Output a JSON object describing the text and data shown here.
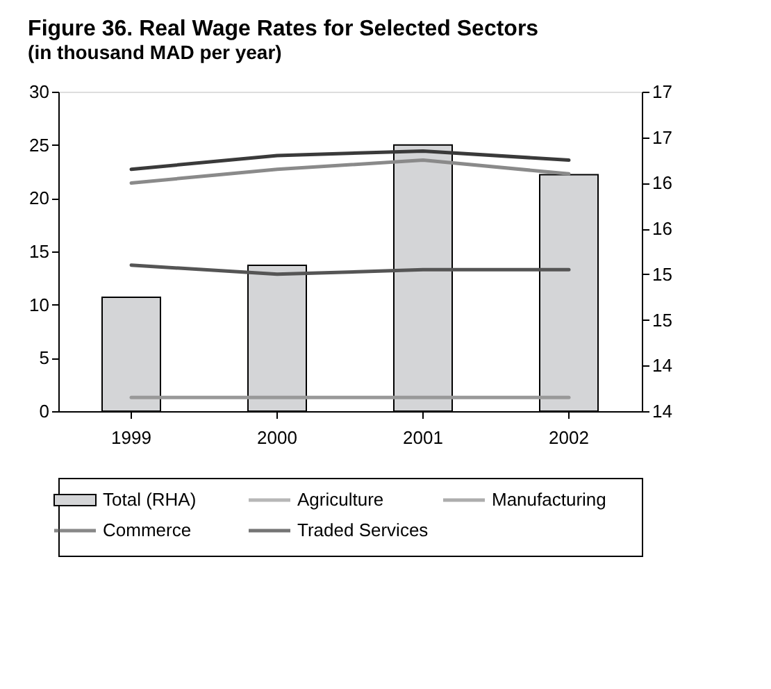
{
  "chart_data": {
    "type": "bar",
    "title": "Figure 36.  Real Wage Rates for Selected Sectors",
    "subtitle": "(in thousand MAD per year)",
    "categories": [
      "1999",
      "2000",
      "2001",
      "2002"
    ],
    "series": [
      {
        "name": "Total (RHA)",
        "color": "#d4d5d7",
        "values": [
          10.7,
          13.7,
          25,
          22.2
        ]
      },
      {
        "name": "Agriculture",
        "type": "line",
        "axis": "y2",
        "color": "#999999",
        "values": [
          13.65,
          13.65,
          13.65,
          13.65
        ]
      },
      {
        "name": "Manufacturing",
        "type": "line",
        "axis": "y2",
        "color": "#8a8a8a",
        "values": [
          16.0,
          16.15,
          16.25,
          16.1
        ]
      },
      {
        "name": "Commerce",
        "type": "line",
        "axis": "y2",
        "color": "#555555",
        "values": [
          15.1,
          15.0,
          15.05,
          15.05
        ]
      },
      {
        "name": "Traded Services",
        "type": "line",
        "axis": "y2",
        "color": "#3a3a3a",
        "values": [
          16.15,
          16.3,
          16.35,
          16.25
        ]
      }
    ],
    "ylim": [
      0,
      30
    ],
    "yticks": [
      0,
      5,
      10,
      15,
      20,
      25,
      30
    ],
    "y2lim": [
      13.5,
      17
    ],
    "y2ticks": [
      {
        "value": 13.5,
        "label": "14"
      },
      {
        "value": 14,
        "label": "14"
      },
      {
        "value": 14.5,
        "label": "15"
      },
      {
        "value": 15,
        "label": "15"
      },
      {
        "value": 15.5,
        "label": "16"
      },
      {
        "value": 16,
        "label": "16"
      },
      {
        "value": 16.5,
        "label": "17"
      },
      {
        "value": 17,
        "label": "17"
      }
    ],
    "grid": false,
    "legend": "bottom"
  }
}
